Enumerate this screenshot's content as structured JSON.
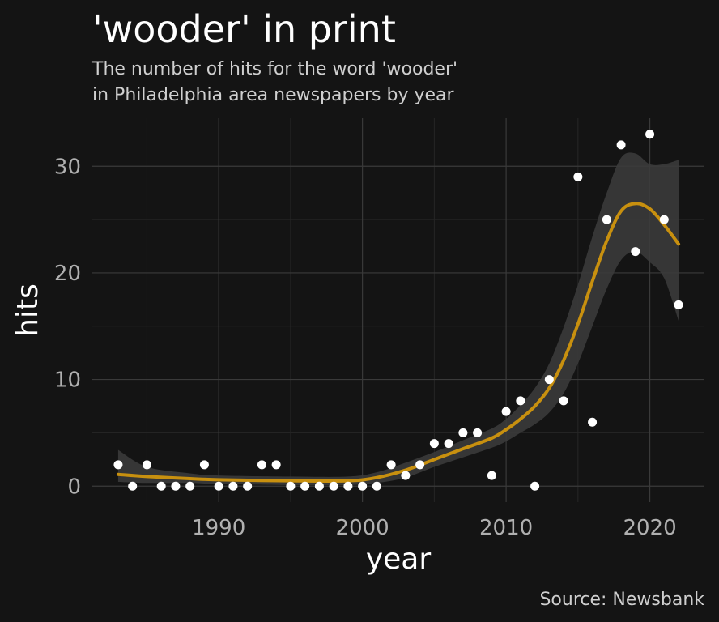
{
  "colors": {
    "background": "#141414",
    "grid_major": "#3a3a3a",
    "grid_minor": "#262626",
    "text": "#ffffff",
    "subtext": "#cfcfcf",
    "axis_text": "#b0b0b0",
    "point": "#ffffff",
    "smooth_line": "#c8900f",
    "confidence_band": "#3c3c3c"
  },
  "chart_data": {
    "type": "scatter",
    "title": "'wooder' in print",
    "subtitle": [
      "The number of hits for the word 'wooder'",
      "in Philadelphia area newspapers by year"
    ],
    "xlabel": "year",
    "ylabel": "hits",
    "caption": "Source: Newsbank",
    "xlim": [
      1981.2,
      2023.8
    ],
    "ylim": [
      -1.5,
      34.5
    ],
    "x_ticks": [
      1990,
      2000,
      2010,
      2020
    ],
    "y_ticks": [
      0,
      10,
      20,
      30
    ],
    "grid": true,
    "points": {
      "x": [
        1983,
        1984,
        1985,
        1986,
        1987,
        1988,
        1989,
        1990,
        1991,
        1992,
        1993,
        1994,
        1995,
        1996,
        1997,
        1998,
        1999,
        2000,
        2001,
        2002,
        2003,
        2004,
        2005,
        2006,
        2007,
        2008,
        2009,
        2010,
        2011,
        2012,
        2013,
        2014,
        2015,
        2016,
        2017,
        2018,
        2019,
        2020,
        2021,
        2022
      ],
      "y": [
        2,
        0,
        2,
        0,
        0,
        0,
        2,
        0,
        0,
        0,
        2,
        2,
        0,
        0,
        0,
        0,
        0,
        0,
        0,
        2,
        1,
        2,
        4,
        4,
        5,
        5,
        1,
        7,
        8,
        0,
        10,
        8,
        29,
        6,
        25,
        32,
        22,
        33,
        25,
        17
      ]
    },
    "smooth": {
      "x": [
        1983,
        1985,
        1988,
        1990,
        1995,
        1999,
        2001,
        2003,
        2005,
        2007,
        2009,
        2010,
        2011,
        2012,
        2013,
        2014,
        2015,
        2016,
        2017,
        2018,
        2019,
        2020,
        2021,
        2022
      ],
      "y": [
        1.1,
        0.9,
        0.7,
        0.6,
        0.5,
        0.5,
        0.8,
        1.5,
        2.5,
        3.5,
        4.5,
        5.3,
        6.3,
        7.5,
        9.2,
        11.8,
        15.2,
        19.2,
        23.0,
        25.8,
        26.5,
        26.0,
        24.5,
        22.7
      ],
      "lower": [
        0.4,
        0.3,
        0.3,
        0.2,
        0.1,
        0.1,
        0.3,
        0.8,
        1.8,
        2.7,
        3.6,
        4.2,
        5.0,
        5.8,
        6.9,
        8.7,
        11.5,
        15.0,
        18.5,
        21.2,
        22.0,
        21.0,
        19.5,
        15.5
      ],
      "upper": [
        3.4,
        1.8,
        1.2,
        1.0,
        0.9,
        0.9,
        1.3,
        2.2,
        3.2,
        4.3,
        5.4,
        6.3,
        7.6,
        9.2,
        11.5,
        14.9,
        18.9,
        23.4,
        27.5,
        30.8,
        31.2,
        30.2,
        30.2,
        30.6
      ]
    }
  }
}
